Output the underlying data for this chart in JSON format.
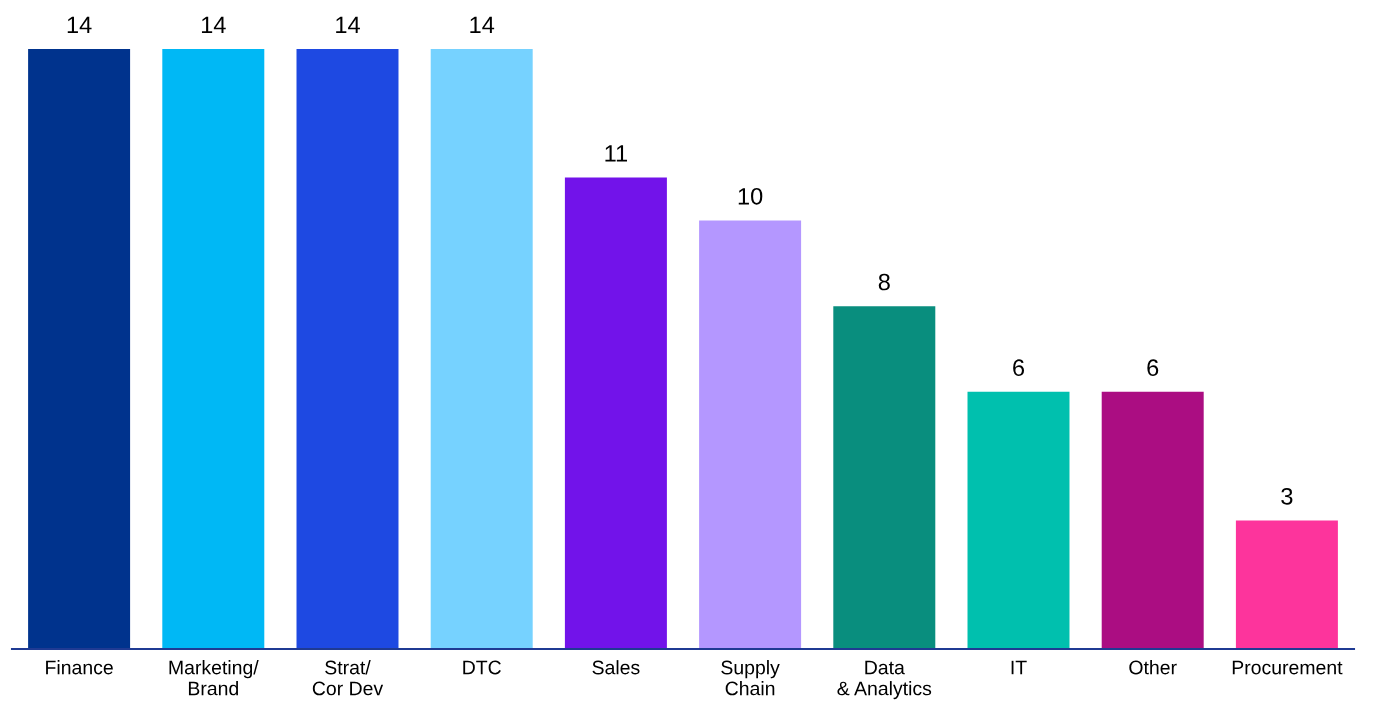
{
  "chart_data": {
    "type": "bar",
    "categories": [
      "Finance",
      "Marketing/\nBrand",
      "Strat/\nCor Dev",
      "DTC",
      "Sales",
      "Supply\nChain",
      "Data\n& Analytics",
      "IT",
      "Other",
      "Procurement"
    ],
    "values": [
      14,
      14,
      14,
      14,
      11,
      10,
      8,
      6,
      6,
      3
    ],
    "colors": [
      "#00338d",
      "#00b8f5",
      "#1e49e2",
      "#76d2ff",
      "#7213ea",
      "#b497ff",
      "#098e7e",
      "#00c0ae",
      "#ab0d82",
      "#fd349c"
    ],
    "tick_labels": "x",
    "data_labels": true,
    "grid": false,
    "legend": false
  }
}
